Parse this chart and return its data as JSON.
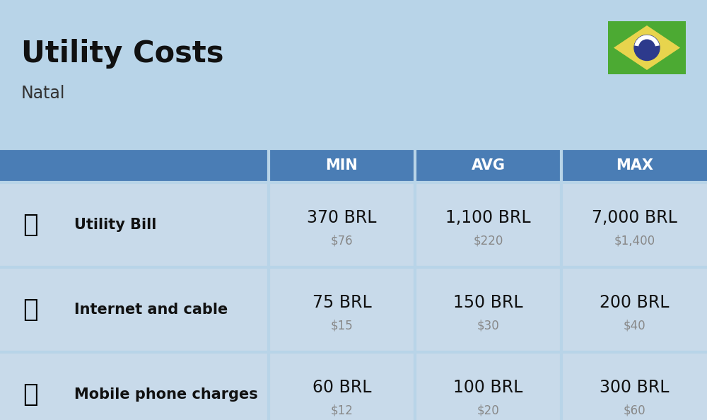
{
  "title": "Utility Costs",
  "subtitle": "Natal",
  "background_color": "#b8d4e8",
  "header_bg_color": "#4a7db5",
  "header_text_color": "#ffffff",
  "row_bg_color": "#c8daea",
  "divider_color": "#b8d4e8",
  "columns": [
    "MIN",
    "AVG",
    "MAX"
  ],
  "rows": [
    {
      "label": "Utility Bill",
      "min_brl": "370 BRL",
      "min_usd": "$76",
      "avg_brl": "1,100 BRL",
      "avg_usd": "$220",
      "max_brl": "7,000 BRL",
      "max_usd": "$1,400"
    },
    {
      "label": "Internet and cable",
      "min_brl": "75 BRL",
      "min_usd": "$15",
      "avg_brl": "150 BRL",
      "avg_usd": "$30",
      "max_brl": "200 BRL",
      "max_usd": "$40"
    },
    {
      "label": "Mobile phone charges",
      "min_brl": "60 BRL",
      "min_usd": "$12",
      "avg_brl": "100 BRL",
      "avg_usd": "$20",
      "max_brl": "300 BRL",
      "max_usd": "$60"
    }
  ],
  "flag_green": "#4caa33",
  "flag_yellow": "#e8d44d",
  "flag_blue": "#2d3a8c",
  "flag_white": "#ffffff",
  "brl_fontsize": 17,
  "usd_fontsize": 12,
  "label_fontsize": 15,
  "header_fontsize": 15,
  "title_fontsize": 30,
  "subtitle_fontsize": 17
}
